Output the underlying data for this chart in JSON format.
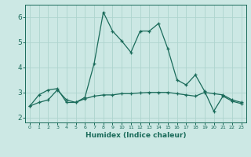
{
  "xlabel": "Humidex (Indice chaleur)",
  "background_color": "#cce8e4",
  "grid_color": "#aed4ce",
  "line_color": "#1a6b5a",
  "spine_color": "#1a6b5a",
  "x_line1": [
    0,
    1,
    2,
    3,
    4,
    5,
    6,
    7,
    8,
    9,
    10,
    11,
    12,
    13,
    14,
    15,
    16,
    17,
    18,
    19,
    20,
    21,
    22,
    23
  ],
  "y_line1": [
    2.45,
    2.9,
    3.1,
    3.15,
    2.6,
    2.6,
    2.8,
    4.15,
    6.2,
    5.45,
    5.05,
    4.6,
    5.45,
    5.45,
    5.75,
    4.75,
    3.5,
    3.3,
    3.7,
    3.05,
    2.25,
    2.85,
    2.65,
    2.55
  ],
  "x_line2": [
    0,
    1,
    2,
    3,
    4,
    5,
    6,
    7,
    8,
    9,
    10,
    11,
    12,
    13,
    14,
    15,
    16,
    17,
    18,
    19,
    20,
    21,
    22,
    23
  ],
  "y_line2": [
    2.45,
    2.6,
    2.7,
    3.1,
    2.7,
    2.6,
    2.75,
    2.85,
    2.9,
    2.9,
    2.95,
    2.95,
    2.98,
    3.0,
    3.0,
    3.0,
    2.95,
    2.9,
    2.85,
    3.0,
    2.95,
    2.9,
    2.7,
    2.6
  ],
  "xlim": [
    -0.5,
    23.5
  ],
  "ylim": [
    1.8,
    6.5
  ],
  "yticks": [
    2,
    3,
    4,
    5,
    6
  ],
  "xticks": [
    0,
    1,
    2,
    3,
    4,
    5,
    6,
    7,
    8,
    9,
    10,
    11,
    12,
    13,
    14,
    15,
    16,
    17,
    18,
    19,
    20,
    21,
    22,
    23
  ]
}
